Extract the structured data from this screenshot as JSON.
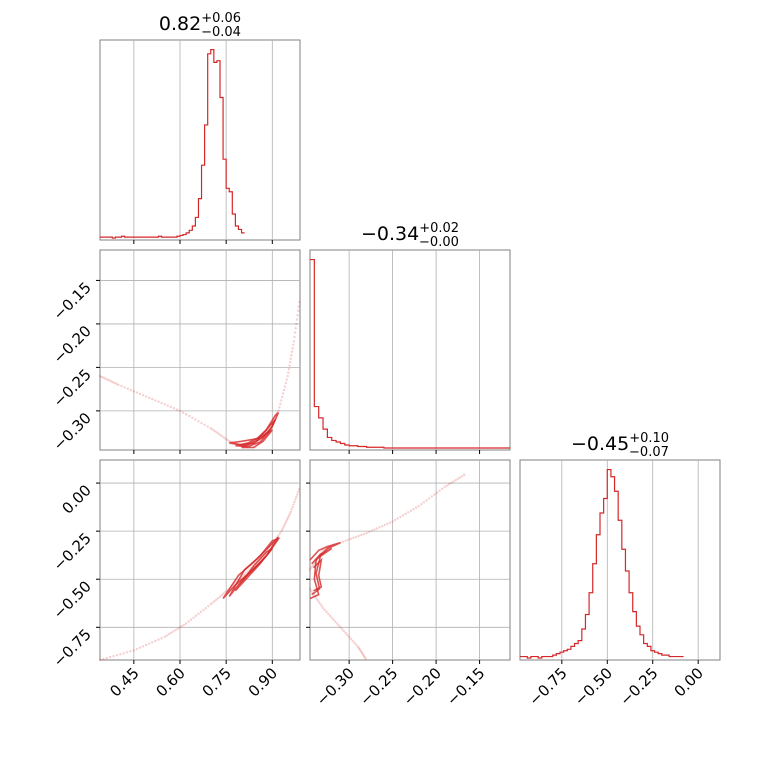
{
  "chart_data": [
    {
      "type": "histogram",
      "panel": "p1-marginal",
      "title": {
        "median": "0.82",
        "plus": "+0.06",
        "minus": "−0.04"
      },
      "xlim": [
        0.34,
        0.99
      ],
      "bin_edges_start": 0.34,
      "bin_width": 0.01,
      "counts": [
        1,
        1,
        1,
        1,
        0,
        1,
        1,
        2,
        1,
        1,
        1,
        1,
        1,
        1,
        1,
        1,
        1,
        1,
        1,
        2,
        1,
        1,
        1,
        1,
        1,
        2,
        3,
        4,
        6,
        9,
        14,
        24,
        46,
        85,
        132,
        215,
        220,
        205,
        207,
        164,
        92,
        58,
        54,
        28,
        14,
        10,
        6
      ]
    },
    {
      "type": "histogram",
      "panel": "p2-marginal",
      "title": {
        "median": "−0.34",
        "plus": "+0.02",
        "minus": "−0.00"
      },
      "xlim": [
        -0.345,
        -0.115
      ],
      "bin_edges_start": -0.345,
      "bin_width": 0.005,
      "counts": [
        250,
        55,
        40,
        25,
        14,
        10,
        8,
        6,
        4,
        3,
        3,
        2,
        2,
        1,
        1,
        1,
        1,
        0,
        0,
        0,
        0,
        0,
        0,
        0,
        0,
        0,
        0,
        0,
        0,
        0,
        0,
        0,
        0,
        0,
        0,
        0,
        0,
        0,
        0,
        0,
        0,
        0,
        0,
        0,
        0,
        0
      ]
    },
    {
      "type": "histogram",
      "panel": "p3-marginal",
      "title": {
        "median": "−0.45",
        "plus": "+0.10",
        "minus": "−0.07"
      },
      "xlim": [
        -0.98,
        0.12
      ],
      "bin_edges_start": -0.98,
      "bin_width": 0.02,
      "counts": [
        1,
        1,
        0,
        1,
        1,
        0,
        1,
        1,
        1,
        2,
        3,
        4,
        5,
        6,
        8,
        10,
        12,
        20,
        30,
        45,
        65,
        85,
        100,
        110,
        130,
        125,
        115,
        95,
        75,
        60,
        45,
        32,
        22,
        16,
        10,
        8,
        5,
        4,
        3,
        2,
        2,
        1,
        1,
        1,
        1
      ]
    },
    {
      "type": "scatter",
      "panel": "p1-vs-p2",
      "xlim": [
        0.34,
        0.99
      ],
      "ylim": [
        -0.345,
        -0.115
      ],
      "curve": [
        [
          0.34,
          -0.26
        ],
        [
          0.4,
          -0.27
        ],
        [
          0.5,
          -0.285
        ],
        [
          0.6,
          -0.3
        ],
        [
          0.7,
          -0.32
        ],
        [
          0.76,
          -0.335
        ],
        [
          0.8,
          -0.34
        ],
        [
          0.84,
          -0.338
        ],
        [
          0.88,
          -0.325
        ],
        [
          0.92,
          -0.3
        ],
        [
          0.95,
          -0.26
        ],
        [
          0.97,
          -0.22
        ],
        [
          0.99,
          -0.17
        ]
      ],
      "contours": [
        [
          [
            0.76,
            -0.337
          ],
          [
            0.8,
            -0.339
          ],
          [
            0.84,
            -0.337
          ],
          [
            0.87,
            -0.33
          ],
          [
            0.9,
            -0.318
          ],
          [
            0.92,
            -0.302
          ],
          [
            0.91,
            -0.305
          ],
          [
            0.88,
            -0.322
          ],
          [
            0.85,
            -0.332
          ],
          [
            0.8,
            -0.335
          ],
          [
            0.76,
            -0.337
          ]
        ],
        [
          [
            0.78,
            -0.34
          ],
          [
            0.82,
            -0.341
          ],
          [
            0.86,
            -0.336
          ],
          [
            0.89,
            -0.324
          ],
          [
            0.91,
            -0.31
          ],
          [
            0.89,
            -0.318
          ],
          [
            0.86,
            -0.33
          ],
          [
            0.82,
            -0.337
          ],
          [
            0.78,
            -0.34
          ]
        ],
        [
          [
            0.8,
            -0.342
          ],
          [
            0.84,
            -0.342
          ],
          [
            0.87,
            -0.335
          ],
          [
            0.9,
            -0.322
          ],
          [
            0.88,
            -0.326
          ],
          [
            0.85,
            -0.334
          ],
          [
            0.8,
            -0.342
          ]
        ]
      ]
    },
    {
      "type": "scatter",
      "panel": "p1-vs-p3",
      "xlim": [
        0.34,
        0.99
      ],
      "ylim": [
        -0.92,
        0.12
      ],
      "curve": [
        [
          0.34,
          -0.92
        ],
        [
          0.45,
          -0.87
        ],
        [
          0.55,
          -0.8
        ],
        [
          0.62,
          -0.73
        ],
        [
          0.7,
          -0.63
        ],
        [
          0.76,
          -0.55
        ],
        [
          0.82,
          -0.46
        ],
        [
          0.88,
          -0.36
        ],
        [
          0.93,
          -0.25
        ],
        [
          0.96,
          -0.15
        ],
        [
          0.99,
          -0.02
        ]
      ],
      "contours": [
        [
          [
            0.74,
            -0.6
          ],
          [
            0.78,
            -0.53
          ],
          [
            0.83,
            -0.46
          ],
          [
            0.88,
            -0.38
          ],
          [
            0.92,
            -0.28
          ],
          [
            0.89,
            -0.33
          ],
          [
            0.84,
            -0.41
          ],
          [
            0.79,
            -0.48
          ],
          [
            0.74,
            -0.6
          ]
        ],
        [
          [
            0.76,
            -0.59
          ],
          [
            0.8,
            -0.51
          ],
          [
            0.85,
            -0.43
          ],
          [
            0.89,
            -0.36
          ],
          [
            0.92,
            -0.29
          ],
          [
            0.9,
            -0.3
          ],
          [
            0.86,
            -0.38
          ],
          [
            0.81,
            -0.45
          ],
          [
            0.76,
            -0.59
          ]
        ],
        [
          [
            0.78,
            -0.56
          ],
          [
            0.82,
            -0.49
          ],
          [
            0.86,
            -0.42
          ],
          [
            0.9,
            -0.34
          ],
          [
            0.88,
            -0.36
          ],
          [
            0.84,
            -0.43
          ],
          [
            0.78,
            -0.56
          ]
        ]
      ]
    },
    {
      "type": "scatter",
      "panel": "p2-vs-p3",
      "xlim": [
        -0.345,
        -0.115
      ],
      "ylim": [
        -0.92,
        0.12
      ],
      "curve": [
        [
          -0.345,
          -0.45
        ],
        [
          -0.33,
          -0.35
        ],
        [
          -0.31,
          -0.31
        ],
        [
          -0.28,
          -0.26
        ],
        [
          -0.25,
          -0.2
        ],
        [
          -0.22,
          -0.12
        ],
        [
          -0.19,
          -0.02
        ],
        [
          -0.165,
          0.05
        ]
      ],
      "lower_curve": [
        [
          -0.345,
          -0.55
        ],
        [
          -0.33,
          -0.65
        ],
        [
          -0.31,
          -0.75
        ],
        [
          -0.29,
          -0.85
        ],
        [
          -0.28,
          -0.92
        ]
      ],
      "contours": [
        [
          [
            -0.345,
            -0.4
          ],
          [
            -0.335,
            -0.35
          ],
          [
            -0.325,
            -0.33
          ],
          [
            -0.31,
            -0.31
          ],
          [
            -0.325,
            -0.34
          ],
          [
            -0.338,
            -0.4
          ],
          [
            -0.34,
            -0.5
          ],
          [
            -0.335,
            -0.58
          ],
          [
            -0.345,
            -0.6
          ]
        ],
        [
          [
            -0.343,
            -0.42
          ],
          [
            -0.333,
            -0.37
          ],
          [
            -0.32,
            -0.34
          ],
          [
            -0.333,
            -0.38
          ],
          [
            -0.338,
            -0.47
          ],
          [
            -0.334,
            -0.55
          ],
          [
            -0.343,
            -0.58
          ]
        ],
        [
          [
            -0.341,
            -0.44
          ],
          [
            -0.332,
            -0.4
          ],
          [
            -0.335,
            -0.48
          ],
          [
            -0.332,
            -0.54
          ],
          [
            -0.341,
            -0.56
          ]
        ]
      ]
    }
  ],
  "axes": {
    "x_ticks": {
      "p1": [
        {
          "v": 0.45,
          "label": "0.45"
        },
        {
          "v": 0.6,
          "label": "0.60"
        },
        {
          "v": 0.75,
          "label": "0.75"
        },
        {
          "v": 0.9,
          "label": "0.90"
        }
      ],
      "p2": [
        {
          "v": -0.3,
          "label": "−0.30"
        },
        {
          "v": -0.25,
          "label": "−0.25"
        },
        {
          "v": -0.2,
          "label": "−0.20"
        },
        {
          "v": -0.15,
          "label": "−0.15"
        }
      ],
      "p3": [
        {
          "v": -0.75,
          "label": "−0.75"
        },
        {
          "v": -0.5,
          "label": "−0.50"
        },
        {
          "v": -0.25,
          "label": "−0.25"
        },
        {
          "v": 0.0,
          "label": "0.00"
        }
      ]
    },
    "y_ticks": {
      "p2": [
        {
          "v": -0.15,
          "label": "−0.15"
        },
        {
          "v": -0.2,
          "label": "−0.20"
        },
        {
          "v": -0.25,
          "label": "−0.25"
        },
        {
          "v": -0.3,
          "label": "−0.30"
        }
      ],
      "p3": [
        {
          "v": 0.0,
          "label": "0.00"
        },
        {
          "v": -0.25,
          "label": "−0.25"
        },
        {
          "v": -0.5,
          "label": "−0.50"
        },
        {
          "v": -0.75,
          "label": "−0.75"
        }
      ]
    }
  },
  "colors": {
    "series": "#d62728",
    "frame": "#808080",
    "grid": "#b0b0b0"
  }
}
